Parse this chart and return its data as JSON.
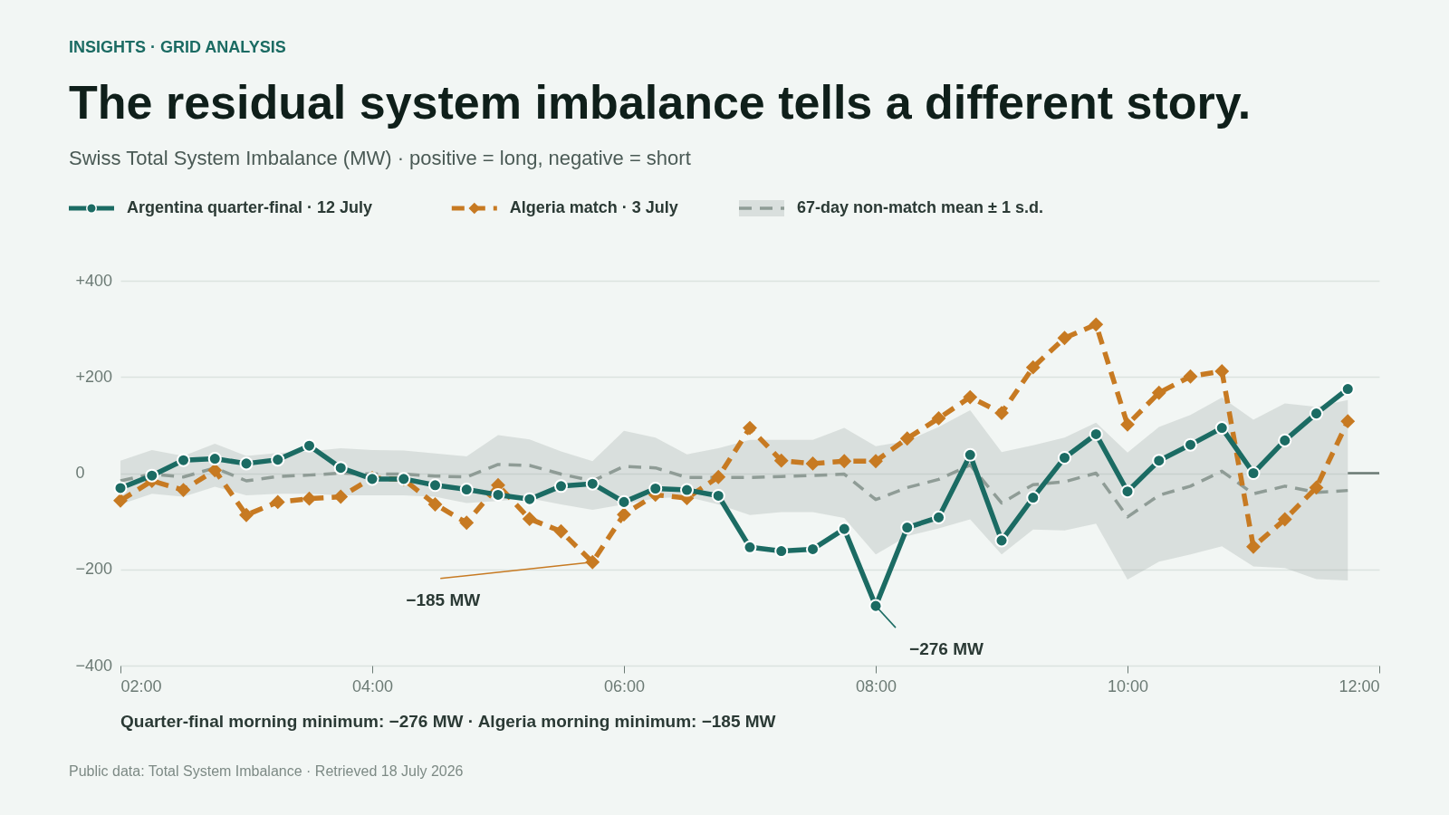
{
  "chart_data": {
    "type": "line",
    "title": "The residual system imbalance tells a different story.",
    "subtitle": "Swiss Total System Imbalance (MW) · positive = long, negative = short",
    "annotations": [
      "INSIGHTS · GRID ANALYSIS",
      "Quarter-final morning minimum: −276 MW  ·  Algeria morning minimum: −185 MW",
      "Public data: Total System Imbalance · Retrieved 18 July 2026",
      {
        "text": "−185 MW",
        "x": 5.75,
        "y": -185
      },
      {
        "text": "−276 MW",
        "x": 8,
        "y": -276
      }
    ],
    "x": [
      2,
      2.25,
      2.5,
      2.75,
      3,
      3.25,
      3.5,
      3.75,
      4,
      4.25,
      4.5,
      4.75,
      5,
      5.25,
      5.5,
      5.75,
      6,
      6.25,
      6.5,
      6.75,
      7,
      7.25,
      7.5,
      7.75,
      8,
      8.25,
      8.5,
      8.75,
      9,
      9.25,
      9.5,
      9.75,
      10,
      10.25,
      10.5,
      10.75,
      11,
      11.25,
      11.5,
      11.75
    ],
    "series": [
      {
        "name": "67-day non-match mean ± 1 s.d.",
        "color": "#8f9c96",
        "marker": "none",
        "line_style": "dashed",
        "values": [
          -16,
          -2,
          -8,
          11,
          -16,
          -7,
          -4,
          0,
          -2,
          -2,
          -6,
          -8,
          18,
          16,
          -2,
          -16,
          14,
          11,
          -9,
          -9,
          -9,
          -7,
          -5,
          -2,
          -55,
          -30,
          -13,
          17,
          -62,
          -24,
          -18,
          0,
          -91,
          -46,
          -27,
          4,
          -43,
          -27,
          -40,
          -36
        ],
        "lower": [
          -65,
          -43,
          -49,
          -28,
          -46,
          -43,
          -43,
          -46,
          -46,
          -46,
          -49,
          -62,
          -58,
          -52,
          -65,
          -76,
          -65,
          -52,
          -49,
          -65,
          -87,
          -81,
          -81,
          -93,
          -169,
          -131,
          -115,
          -96,
          -169,
          -117,
          -119,
          -105,
          -221,
          -184,
          -169,
          -152,
          -194,
          -197,
          -220,
          -223
        ],
        "upper": [
          26,
          48,
          36,
          61,
          36,
          42,
          45,
          52,
          48,
          47,
          41,
          35,
          79,
          70,
          45,
          25,
          88,
          74,
          39,
          52,
          69,
          69,
          69,
          94,
          56,
          67,
          96,
          131,
          44,
          58,
          74,
          105,
          43,
          96,
          121,
          157,
          111,
          145,
          138,
          152
        ]
      },
      {
        "name": "Algeria match · 3 July",
        "color": "#c77a22",
        "marker": "diamond",
        "line_style": "dashed",
        "values": [
          -57,
          -16,
          -35,
          6,
          -87,
          -60,
          -53,
          -49,
          -10,
          -13,
          -65,
          -103,
          -25,
          -95,
          -121,
          -185,
          -86,
          -45,
          -52,
          -8,
          94,
          26,
          20,
          25,
          25,
          72,
          114,
          158,
          125,
          220,
          281,
          309,
          101,
          167,
          201,
          212,
          -153,
          -96,
          -30,
          108
        ]
      },
      {
        "name": "Argentina quarter-final · 12 July",
        "color": "#1b6b63",
        "marker": "circle",
        "line_style": "solid",
        "values": [
          -31,
          -5,
          27,
          30,
          20,
          28,
          57,
          11,
          -12,
          -12,
          -25,
          -34,
          -45,
          -54,
          -27,
          -22,
          -60,
          -32,
          -35,
          -47,
          -154,
          -162,
          -158,
          -116,
          -276,
          -113,
          -92,
          38,
          -140,
          -51,
          32,
          81,
          -38,
          26,
          59,
          94,
          0,
          68,
          124,
          175
        ]
      },
      {
        "color": "#6b7a74",
        "marker": "none",
        "line_style": "solid",
        "x": [
          11.75,
          12
        ],
        "values": [
          0,
          0
        ]
      }
    ],
    "xlim": [
      2,
      12
    ],
    "xticks": [
      {
        "value": 2,
        "label": "02:00"
      },
      {
        "value": 4,
        "label": "04:00"
      },
      {
        "value": 6,
        "label": "06:00"
      },
      {
        "value": 8,
        "label": "08:00"
      },
      {
        "value": 10,
        "label": "10:00"
      },
      {
        "value": 12,
        "label": "12:00"
      }
    ],
    "ylim": [
      -400,
      400
    ],
    "yticks": [
      {
        "value": -400,
        "label": "−400"
      },
      {
        "value": -200,
        "label": "−200"
      },
      0,
      {
        "value": 200,
        "label": "+200"
      },
      {
        "value": 400,
        "label": "+400"
      }
    ],
    "grid": "y",
    "legend": "top left"
  }
}
